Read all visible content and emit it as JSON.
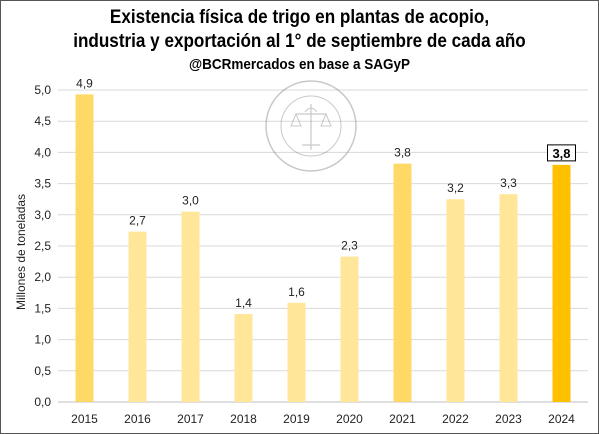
{
  "chart_data": {
    "type": "bar",
    "title_line1": "Existencia física de trigo en plantas de acopio,",
    "title_line2": "industria y exportación al 1° de septiembre de cada año",
    "subtitle": "@BCRmercados en base a SAGyP",
    "ylabel": "Millones de toneladas",
    "xlabel": "",
    "ylim": [
      0,
      5
    ],
    "yticks": [
      "0,0",
      "0,5",
      "1,0",
      "1,5",
      "2,0",
      "2,5",
      "3,0",
      "3,5",
      "4,0",
      "4,5",
      "5,0"
    ],
    "categories": [
      "2015",
      "2016",
      "2017",
      "2018",
      "2019",
      "2020",
      "2021",
      "2022",
      "2023",
      "2024"
    ],
    "values": [
      4.93,
      2.73,
      3.05,
      1.41,
      1.59,
      2.33,
      3.82,
      3.25,
      3.33,
      3.8
    ],
    "value_labels": [
      "4,9",
      "2,7",
      "3,0",
      "1,4",
      "1,6",
      "2,3",
      "3,8",
      "3,2",
      "3,3",
      "3,8"
    ],
    "bar_colors": [
      "#FFD966",
      "#FFE699",
      "#FFE699",
      "#FFE699",
      "#FFE699",
      "#FFE699",
      "#FFD966",
      "#FFE699",
      "#FFE699",
      "#FFC000"
    ],
    "highlight_last": true,
    "grid": true,
    "watermark": "BOLSA DE COMERCIO DE ROSARIO"
  }
}
